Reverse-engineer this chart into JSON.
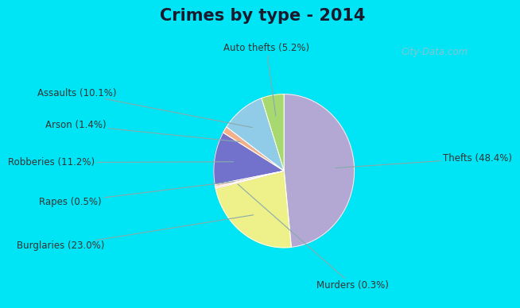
{
  "title": "Crimes by type - 2014",
  "labels": [
    "Thefts",
    "Burglaries",
    "Murders",
    "Rapes",
    "Robberies",
    "Arson",
    "Assaults",
    "Auto thefts"
  ],
  "values": [
    48.4,
    23.0,
    0.3,
    0.5,
    11.2,
    1.4,
    10.1,
    5.2
  ],
  "colors": [
    "#b3a8d4",
    "#eef08a",
    "#ffb8b8",
    "#ffcdb0",
    "#7272cc",
    "#f5b08a",
    "#90cce8",
    "#a8d870"
  ],
  "background_cyan": "#00e5f5",
  "background_main": "#d8ede0",
  "title_color": "#1a1a2e",
  "label_color": "#333333",
  "watermark_color": "#a0bec8",
  "startangle": 90,
  "label_fontsize": 8.5,
  "title_fontsize": 15
}
